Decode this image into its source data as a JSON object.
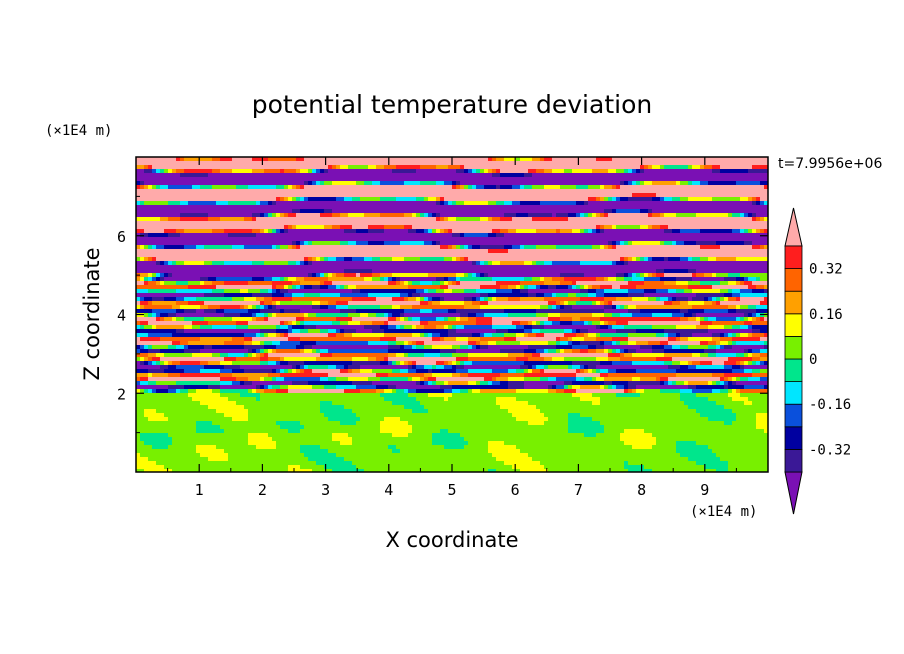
{
  "chart_data": {
    "type": "heatmap",
    "title": "potential temperature deviation",
    "xlabel": "X coordinate",
    "ylabel": "Z coordinate",
    "x_unit": "(×1E4 m)",
    "y_unit": "(×1E4 m)",
    "time_label": "t=7.9956e+06",
    "xlim": [
      0,
      10
    ],
    "ylim": [
      0,
      8
    ],
    "x_ticks": [
      "1",
      "2",
      "3",
      "4",
      "5",
      "6",
      "7",
      "8",
      "9"
    ],
    "y_ticks": [
      "2",
      "4",
      "6"
    ],
    "colorbar": {
      "levels": [
        -0.4,
        -0.32,
        -0.24,
        -0.16,
        -0.08,
        0,
        0.08,
        0.16,
        0.24,
        0.32,
        0.4
      ],
      "tick_labels": [
        "0.32",
        "0.16",
        "0",
        "-0.16",
        "-0.32"
      ],
      "tick_values": [
        0.32,
        0.16,
        0,
        -0.16,
        -0.32
      ],
      "colors_low_to_high": [
        "#3a1896",
        "#0000a0",
        "#0a50dc",
        "#00e6ff",
        "#00e68c",
        "#78f000",
        "#ffff00",
        "#ffa000",
        "#ff6400",
        "#ff1e1e"
      ],
      "under_color": "#7a10b4",
      "over_color": "#ffaaaa"
    },
    "regions": [
      {
        "z_range": [
          0,
          2
        ],
        "description_colors": [
          "#00e68c",
          "#78f000",
          "#b4f000"
        ]
      },
      {
        "z_range": [
          2,
          5
        ],
        "description_colors": [
          "mixed all levels"
        ]
      },
      {
        "z_range": [
          5,
          8
        ],
        "description_colors": [
          "#ffaaaa",
          "#7a10b4"
        ]
      }
    ]
  }
}
